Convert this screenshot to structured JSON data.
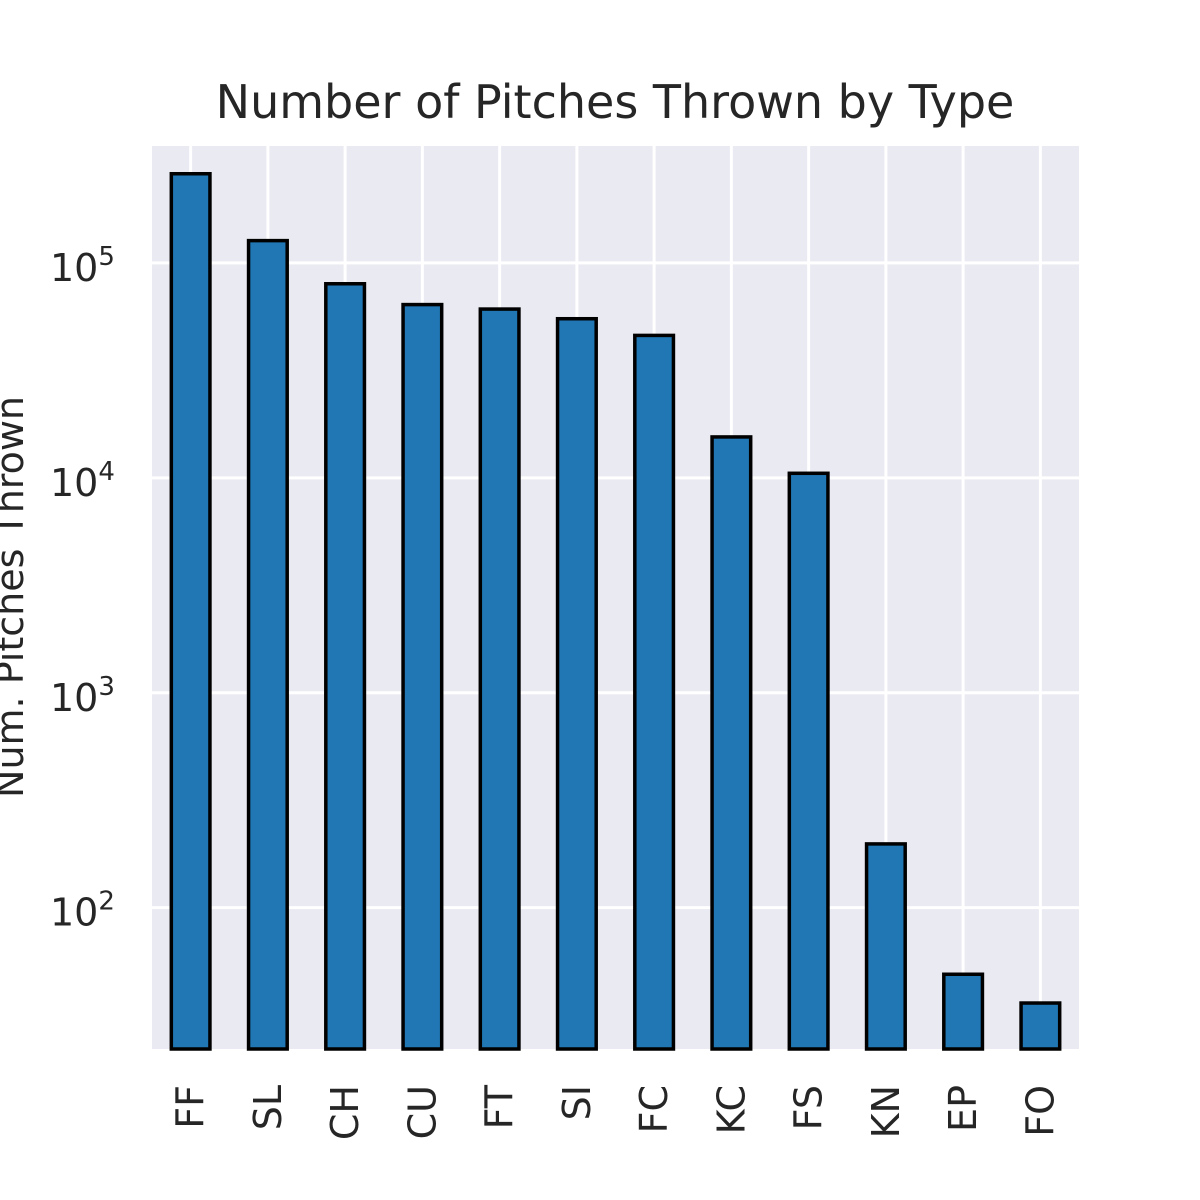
{
  "chart_data": {
    "type": "bar",
    "title": "Number of Pitches Thrown by Type",
    "xlabel": "",
    "ylabel": "Num. Pitches Thrown",
    "yscale": "log",
    "ylim": [
      22,
      350000
    ],
    "grid": true,
    "legend": "none",
    "colors": {
      "bar_fill": "#2077b4",
      "bar_edge": "#000000",
      "plot_background": "#eaeaf2",
      "grid": "#ffffff",
      "text": "#262626"
    },
    "categories": [
      "FF",
      "SL",
      "CH",
      "CU",
      "FT",
      "SI",
      "FC",
      "KC",
      "FS",
      "KN",
      "EP",
      "FO"
    ],
    "values": [
      260000,
      127000,
      80000,
      64000,
      61000,
      55000,
      46000,
      15500,
      10500,
      198,
      49,
      36
    ],
    "y_ticks": [
      {
        "base": "10",
        "exp": "2",
        "value": 100
      },
      {
        "base": "10",
        "exp": "3",
        "value": 1000
      },
      {
        "base": "10",
        "exp": "4",
        "value": 10000
      },
      {
        "base": "10",
        "exp": "5",
        "value": 100000
      }
    ]
  }
}
